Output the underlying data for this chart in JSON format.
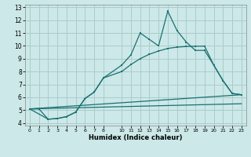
{
  "xlabel": "Humidex (Indice chaleur)",
  "bg_color": "#cce8e8",
  "grid_color": "#aacccc",
  "line_color": "#1a7070",
  "xlim": [
    -0.5,
    23.5
  ],
  "ylim": [
    3.8,
    13.2
  ],
  "yticks": [
    4,
    5,
    6,
    7,
    8,
    9,
    10,
    11,
    12,
    13
  ],
  "xtick_vals": [
    0,
    1,
    2,
    3,
    4,
    5,
    6,
    7,
    8,
    10,
    11,
    12,
    13,
    14,
    15,
    16,
    17,
    18,
    19,
    20,
    21,
    22,
    23
  ],
  "curve1_x": [
    0,
    1,
    2,
    3,
    4,
    5,
    6,
    7,
    8,
    10,
    11,
    12,
    13,
    14,
    15,
    16,
    17,
    18,
    19,
    20,
    21,
    22,
    23
  ],
  "curve1_y": [
    5.1,
    5.1,
    4.3,
    4.35,
    4.5,
    4.85,
    5.9,
    6.4,
    7.5,
    8.5,
    9.3,
    11.0,
    10.5,
    10.0,
    12.7,
    11.2,
    10.3,
    9.65,
    9.65,
    8.5,
    7.3,
    6.3,
    6.2
  ],
  "curve2_x": [
    0,
    2,
    3,
    4,
    5,
    6,
    7,
    8,
    10,
    11,
    12,
    13,
    14,
    15,
    16,
    17,
    18,
    19,
    20,
    21,
    22,
    23
  ],
  "curve2_y": [
    5.1,
    4.3,
    4.35,
    4.5,
    4.85,
    5.9,
    6.4,
    7.5,
    8.0,
    8.55,
    9.0,
    9.35,
    9.6,
    9.8,
    9.9,
    9.95,
    9.97,
    9.98,
    8.5,
    7.3,
    6.3,
    6.2
  ],
  "line1_x": [
    0,
    23
  ],
  "line1_y": [
    5.1,
    6.2
  ],
  "line2_x": [
    0,
    23
  ],
  "line2_y": [
    5.1,
    5.5
  ]
}
